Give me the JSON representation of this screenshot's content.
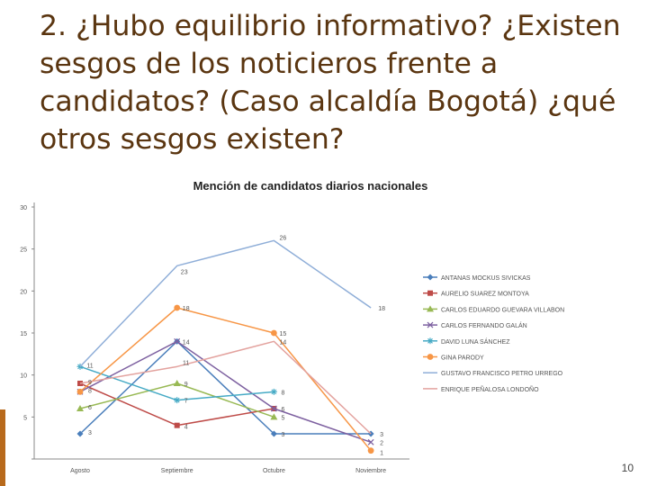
{
  "slide": {
    "title": "2. ¿Hubo equilibrio informativo? ¿Existen sesgos de los noticieros frente a candidatos? (Caso alcaldía Bogotá) ¿qué otros sesgos existen?",
    "page_number": "10"
  },
  "chart_data": {
    "type": "line",
    "title": "Mención de candidatos diarios nacionales",
    "xlabel": "",
    "ylabel": "",
    "categories": [
      "Agosto",
      "Septiembre",
      "Octubre",
      "Noviembre"
    ],
    "ylim": [
      0,
      30
    ],
    "yticks": [
      0,
      5,
      10,
      15,
      20,
      25,
      30
    ],
    "ytick_labels": [
      "",
      "5",
      "10",
      "15",
      "20",
      "25",
      "30"
    ],
    "grid": false,
    "legend_position": "right",
    "series": [
      {
        "name": "ANTANAS MOCKUS SIVICKAS",
        "color": "#4a7ebb",
        "marker": "diamond",
        "values": [
          3,
          14,
          3,
          3
        ]
      },
      {
        "name": "AURELIO SUAREZ MONTOYA",
        "color": "#be4b48",
        "marker": "square",
        "values": [
          9,
          4,
          6,
          null
        ]
      },
      {
        "name": "CARLOS EDUARDO GUEVARA VILLABON",
        "color": "#98b954",
        "marker": "triangle",
        "values": [
          6,
          9,
          5,
          null
        ]
      },
      {
        "name": "CARLOS FERNANDO GALÁN",
        "color": "#7d60a0",
        "marker": "x",
        "values": [
          8,
          14,
          6,
          2
        ]
      },
      {
        "name": "DAVID LUNA SÁNCHEZ",
        "color": "#46aac5",
        "marker": "star",
        "values": [
          11,
          7,
          8,
          null
        ]
      },
      {
        "name": "GINA PARODY",
        "color": "#f79646",
        "marker": "circle",
        "values": [
          8,
          18,
          15,
          1
        ]
      },
      {
        "name": "GUSTAVO FRANCISCO PETRO URREGO",
        "color": "#8faed8",
        "marker": "none",
        "values": [
          11,
          23,
          26,
          18
        ]
      },
      {
        "name": "ENRIQUE PEÑALOSA LONDOÑO",
        "color": "#e3a29e",
        "marker": "none",
        "values": [
          9,
          11,
          14,
          3
        ]
      }
    ],
    "data_labels": [
      {
        "category": "Agosto",
        "value": 11,
        "text": "11"
      },
      {
        "category": "Agosto",
        "value": 9,
        "text": "9"
      },
      {
        "category": "Agosto",
        "value": 8,
        "text": "8"
      },
      {
        "category": "Agosto",
        "value": 6,
        "text": "6"
      },
      {
        "category": "Agosto",
        "value": 3,
        "text": "3"
      },
      {
        "category": "Septiembre",
        "value": 23,
        "text": "23"
      },
      {
        "category": "Septiembre",
        "value": 18,
        "text": "18"
      },
      {
        "category": "Septiembre",
        "value": 14,
        "text": "14"
      },
      {
        "category": "Septiembre",
        "value": 11,
        "text": "11"
      },
      {
        "category": "Septiembre",
        "value": 9,
        "text": "9"
      },
      {
        "category": "Septiembre",
        "value": 7,
        "text": "7"
      },
      {
        "category": "Septiembre",
        "value": 4,
        "text": "4"
      },
      {
        "category": "Octubre",
        "value": 26,
        "text": "26"
      },
      {
        "category": "Octubre",
        "value": 15,
        "text": "15"
      },
      {
        "category": "Octubre",
        "value": 14,
        "text": "14"
      },
      {
        "category": "Octubre",
        "value": 8,
        "text": "8"
      },
      {
        "category": "Octubre",
        "value": 6,
        "text": "6"
      },
      {
        "category": "Octubre",
        "value": 5,
        "text": "5"
      },
      {
        "category": "Octubre",
        "value": 3,
        "text": "3"
      },
      {
        "category": "Noviembre",
        "value": 18,
        "text": "18"
      },
      {
        "category": "Noviembre",
        "value": 3,
        "text": "3"
      },
      {
        "category": "Noviembre",
        "value": 2,
        "text": "2"
      },
      {
        "category": "Noviembre",
        "value": 1,
        "text": "1"
      }
    ]
  }
}
